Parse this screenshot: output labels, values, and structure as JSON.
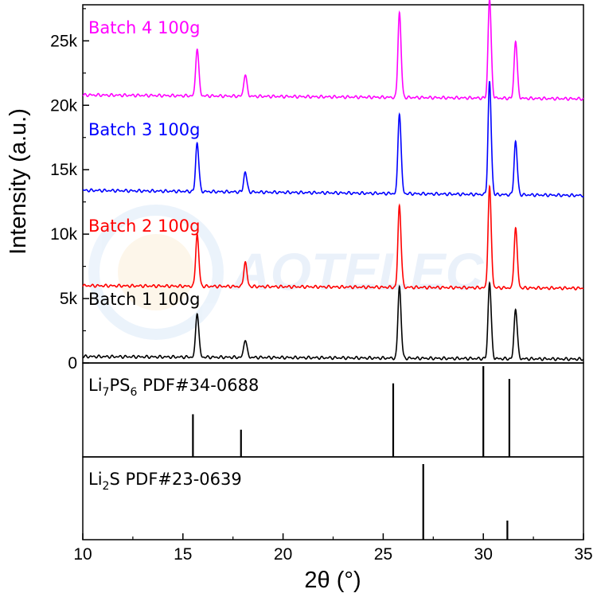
{
  "chart_data": {
    "type": "line",
    "watermark": "AOTELEC",
    "x": {
      "label": "2θ (°)",
      "range": [
        10,
        35
      ],
      "ticks": [
        "10",
        "15",
        "20",
        "25",
        "30",
        "35"
      ],
      "tick_values": [
        10,
        15,
        20,
        25,
        30,
        35
      ]
    },
    "y": {
      "label": "Intensity (a.u.)",
      "range": [
        0,
        27800
      ],
      "ticks": [
        "0",
        "5k",
        "10k",
        "15k",
        "20k",
        "25k"
      ],
      "tick_values": [
        0,
        5000,
        10000,
        15000,
        20000,
        25000
      ]
    },
    "peak_width": 0.07,
    "series": [
      {
        "name": "Batch 1 100g",
        "color": "#000000",
        "baseline_start": 500,
        "baseline_end": 300,
        "peaks": [
          {
            "x": 15.7,
            "height": 3100
          },
          {
            "x": 18.1,
            "height": 1250
          },
          {
            "x": 25.8,
            "height": 5000
          },
          {
            "x": 30.3,
            "height": 5300
          },
          {
            "x": 31.6,
            "height": 3500
          }
        ]
      },
      {
        "name": "Batch 2 100g",
        "color": "#ff0000",
        "baseline_start": 6000,
        "baseline_end": 5800,
        "peaks": [
          {
            "x": 15.7,
            "height": 3600
          },
          {
            "x": 18.1,
            "height": 1700
          },
          {
            "x": 25.8,
            "height": 5700
          },
          {
            "x": 30.3,
            "height": 7000
          },
          {
            "x": 31.6,
            "height": 4200
          }
        ]
      },
      {
        "name": "Batch 3 100g",
        "color": "#0000ff",
        "baseline_start": 13400,
        "baseline_end": 13000,
        "peaks": [
          {
            "x": 15.7,
            "height": 3400
          },
          {
            "x": 18.1,
            "height": 1400
          },
          {
            "x": 25.8,
            "height": 5600
          },
          {
            "x": 30.3,
            "height": 7800
          },
          {
            "x": 31.6,
            "height": 3700
          }
        ]
      },
      {
        "name": "Batch 4 100g",
        "color": "#ff00ff",
        "baseline_start": 20800,
        "baseline_end": 20500,
        "peaks": [
          {
            "x": 15.7,
            "height": 3300
          },
          {
            "x": 18.1,
            "height": 1500
          },
          {
            "x": 25.8,
            "height": 5900
          },
          {
            "x": 30.3,
            "height": 6900
          },
          {
            "x": 31.6,
            "height": 4000
          }
        ]
      }
    ],
    "references": [
      {
        "label_main": "Li",
        "label_sub1": "7",
        "label_mid": "PS",
        "label_sub2": "6",
        "label_tail": " PDF#34-0688",
        "sticks": [
          {
            "x": 15.5,
            "rel": 0.47
          },
          {
            "x": 17.9,
            "rel": 0.3
          },
          {
            "x": 25.5,
            "rel": 0.81
          },
          {
            "x": 30.0,
            "rel": 1.0
          },
          {
            "x": 31.3,
            "rel": 0.86
          }
        ]
      },
      {
        "label_main": "Li",
        "label_sub1": "2",
        "label_mid": "S",
        "label_sub2": "",
        "label_tail": " PDF#23-0639",
        "sticks": [
          {
            "x": 27.0,
            "rel": 0.95
          },
          {
            "x": 31.2,
            "rel": 0.24
          }
        ]
      }
    ]
  }
}
